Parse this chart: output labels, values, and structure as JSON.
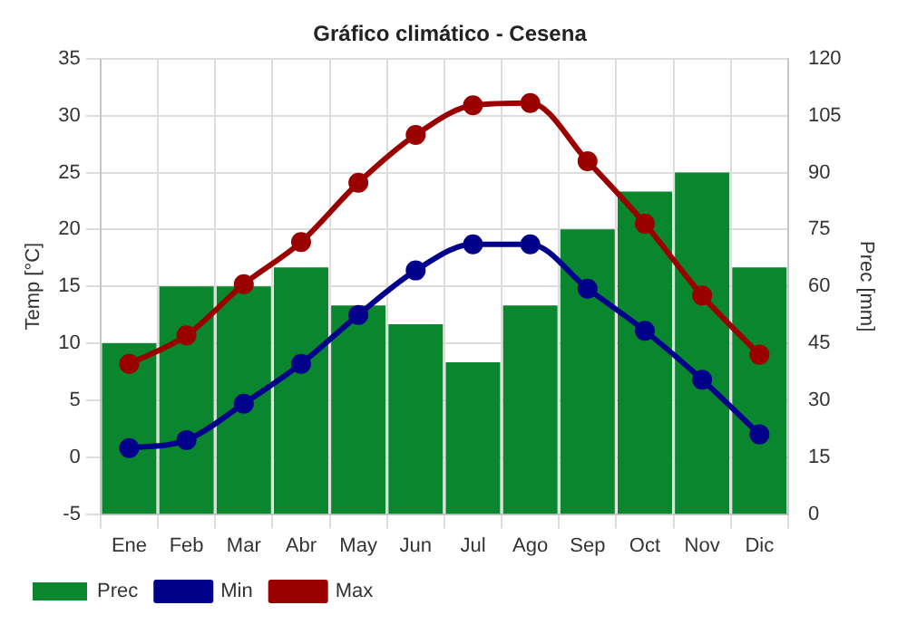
{
  "chart_data": {
    "type": "bar",
    "title": "Gráfico climático - Cesena",
    "xlabel": null,
    "ylabel": "Temp [°C]",
    "y2label": "Prec [mm]",
    "categories": [
      "Ene",
      "Feb",
      "Mar",
      "Abr",
      "May",
      "Jun",
      "Jul",
      "Ago",
      "Sep",
      "Oct",
      "Nov",
      "Dic"
    ],
    "series": [
      {
        "name": "Prec",
        "axis": "y2",
        "color": "#09862e",
        "values": [
          45,
          60,
          60,
          65,
          55,
          50,
          40,
          55,
          75,
          85,
          90,
          65
        ]
      },
      {
        "name": "Min",
        "type": "line",
        "color": "#00008b",
        "values": [
          0.8,
          1.5,
          4.7,
          8.2,
          12.5,
          16.4,
          18.7,
          18.7,
          14.8,
          11.1,
          6.8,
          2.0
        ]
      },
      {
        "name": "Max",
        "type": "line",
        "color": "#9b0000",
        "values": [
          8.2,
          10.7,
          15.2,
          18.9,
          24.1,
          28.3,
          30.9,
          31.1,
          26.0,
          20.5,
          14.2,
          9.0
        ]
      }
    ],
    "ylim": [
      -5,
      35
    ],
    "yticks": [
      -5,
      0,
      5,
      10,
      15,
      20,
      25,
      30,
      35
    ],
    "y2lim": [
      0,
      120
    ],
    "y2ticks": [
      0,
      15,
      30,
      45,
      60,
      75,
      90,
      105,
      120
    ],
    "grid": true,
    "legend": "bottom left",
    "marker": "circle",
    "line_style": "solid"
  }
}
